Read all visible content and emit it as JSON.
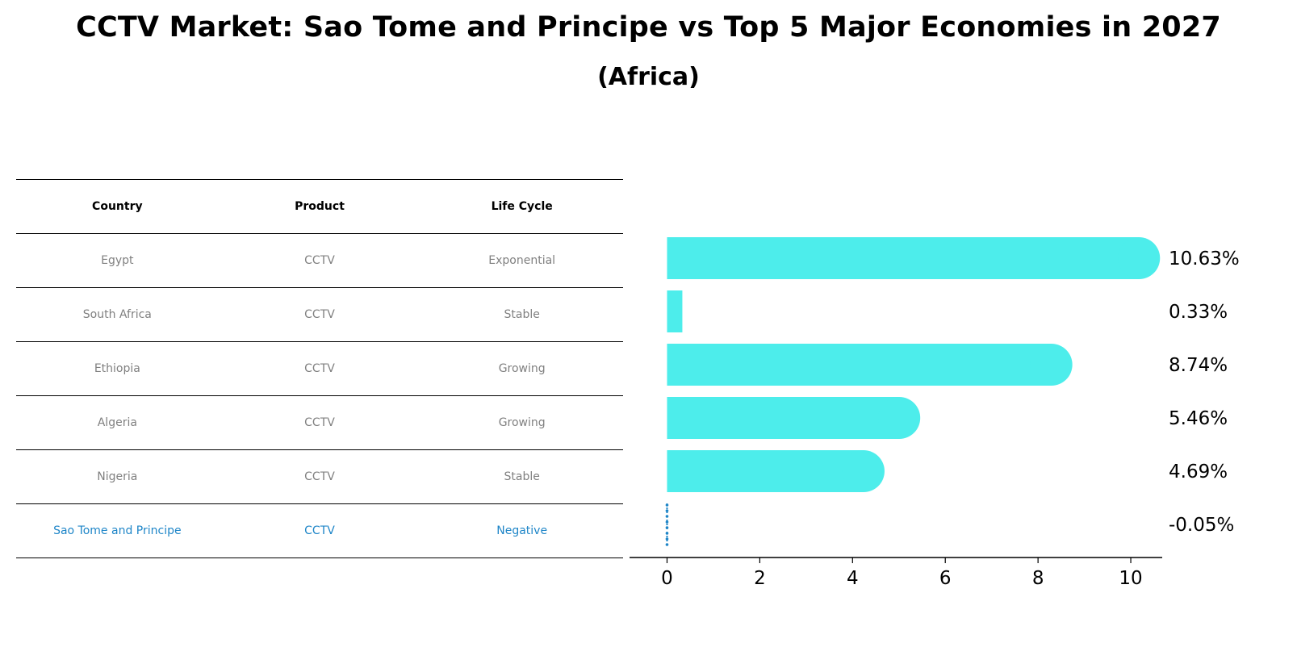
{
  "title": "CCTV Market: Sao Tome and Principe vs Top 5 Major Economies in 2027",
  "subtitle": "(Africa)",
  "table": {
    "headers": [
      "Country",
      "Product",
      "Life Cycle"
    ],
    "rows": [
      {
        "country": "Egypt",
        "product": "CCTV",
        "life_cycle": "Exponential"
      },
      {
        "country": "South Africa",
        "product": "CCTV",
        "life_cycle": "Stable"
      },
      {
        "country": "Ethiopia",
        "product": "CCTV",
        "life_cycle": "Growing"
      },
      {
        "country": "Algeria",
        "product": "CCTV",
        "life_cycle": "Growing"
      },
      {
        "country": "Nigeria",
        "product": "CCTV",
        "life_cycle": "Stable"
      },
      {
        "country": "Sao Tome and Principe",
        "product": "CCTV",
        "life_cycle": "Negative"
      }
    ]
  },
  "colors": {
    "bar": "#4dedeb",
    "highlight": "#1f86c8",
    "muted_text": "#808080"
  },
  "chart_data": {
    "type": "bar",
    "orientation": "horizontal",
    "categories": [
      "Egypt",
      "South Africa",
      "Ethiopia",
      "Algeria",
      "Nigeria",
      "Sao Tome and Principe"
    ],
    "values": [
      10.63,
      0.33,
      8.74,
      5.46,
      4.69,
      -0.05
    ],
    "value_labels": [
      "10.63%",
      "0.33%",
      "8.74%",
      "5.46%",
      "4.69%",
      "-0.05%"
    ],
    "xticks": [
      0,
      2,
      4,
      6,
      8,
      10
    ],
    "xlim": [
      -0.6,
      11.2
    ],
    "title": "",
    "xlabel": "",
    "ylabel": "",
    "grid": false
  }
}
